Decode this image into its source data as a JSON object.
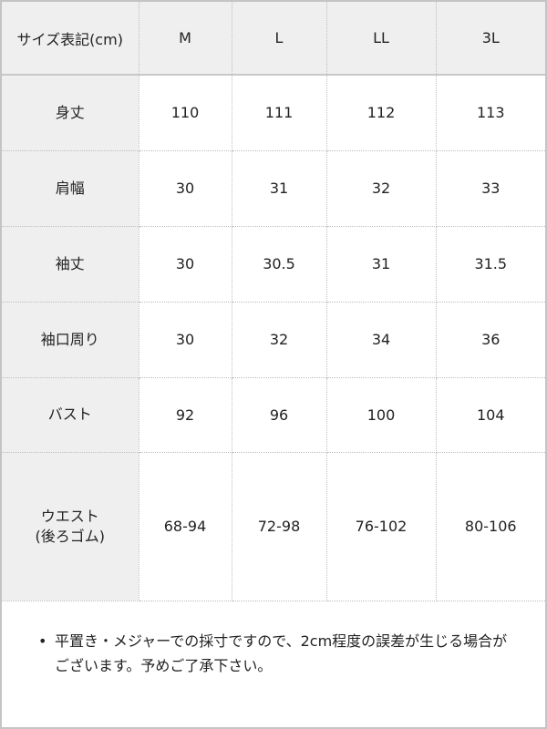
{
  "table": {
    "header": [
      "サイズ表記(cm)",
      "M",
      "L",
      "LL",
      "3L"
    ],
    "rows": [
      {
        "label": "身丈",
        "values": [
          "110",
          "111",
          "112",
          "113"
        ]
      },
      {
        "label": "肩幅",
        "values": [
          "30",
          "31",
          "32",
          "33"
        ]
      },
      {
        "label": "袖丈",
        "values": [
          "30",
          "30.5",
          "31",
          "31.5"
        ]
      },
      {
        "label": "袖口周り",
        "values": [
          "30",
          "32",
          "34",
          "36"
        ]
      },
      {
        "label": "バスト",
        "values": [
          "92",
          "96",
          "100",
          "104"
        ]
      },
      {
        "label": "ウエスト",
        "label2": "(後ろゴム)",
        "values": [
          "68-94",
          "72-98",
          "76-102",
          "80-106"
        ]
      }
    ]
  },
  "note": {
    "bullet": "•",
    "text": "平置き・メジャーでの採寸ですので、2cm程度の誤差が生じる場合がございます。予めご了承下さい。"
  }
}
